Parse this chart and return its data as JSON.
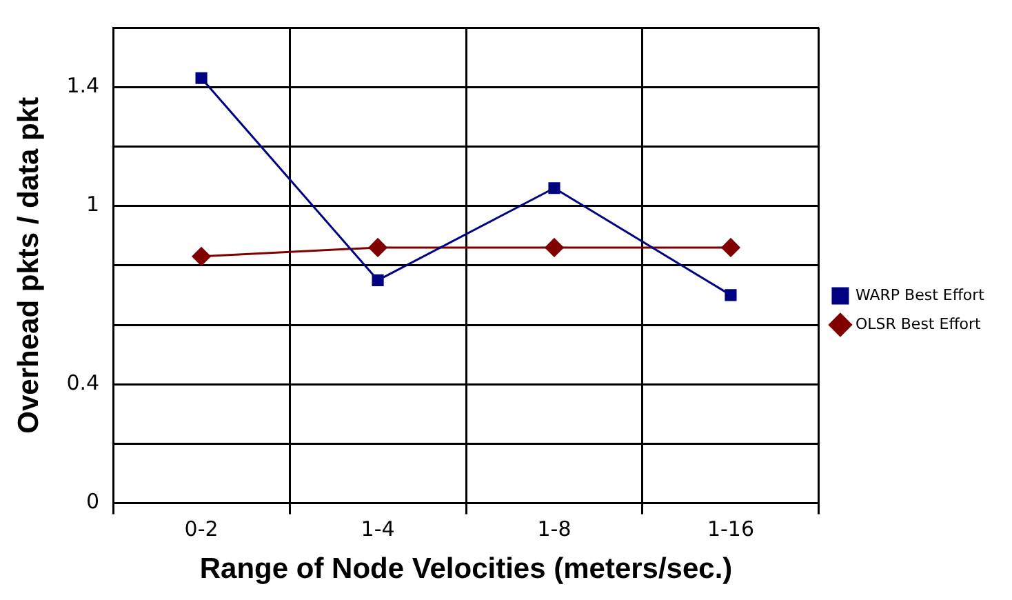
{
  "chart_data": {
    "type": "line",
    "xlabel": "Range of Node Velocities (meters/sec.)",
    "ylabel": "Overhead pkts / data pkt",
    "categories": [
      "0-2",
      "1-4",
      "1-8",
      "1-16"
    ],
    "series": [
      {
        "name": "WARP Best Effort",
        "color": "#000080",
        "marker": "square",
        "values": [
          1.43,
          0.75,
          1.06,
          0.7
        ]
      },
      {
        "name": "OLSR Best Effort",
        "color": "#800000",
        "marker": "diamond",
        "values": [
          0.83,
          0.86,
          0.86,
          0.86
        ]
      }
    ],
    "ylim": [
      0,
      1.6
    ],
    "yticks": [
      0,
      {
        "value": 0.2,
        "label": null
      },
      0.4,
      {
        "value": 0.6,
        "label": null
      },
      {
        "value": 0.8,
        "label": null
      },
      1,
      {
        "value": 1.2,
        "label": null
      },
      1.4,
      {
        "value": 1.6,
        "label": null
      }
    ],
    "grid": true,
    "legend": "right"
  }
}
